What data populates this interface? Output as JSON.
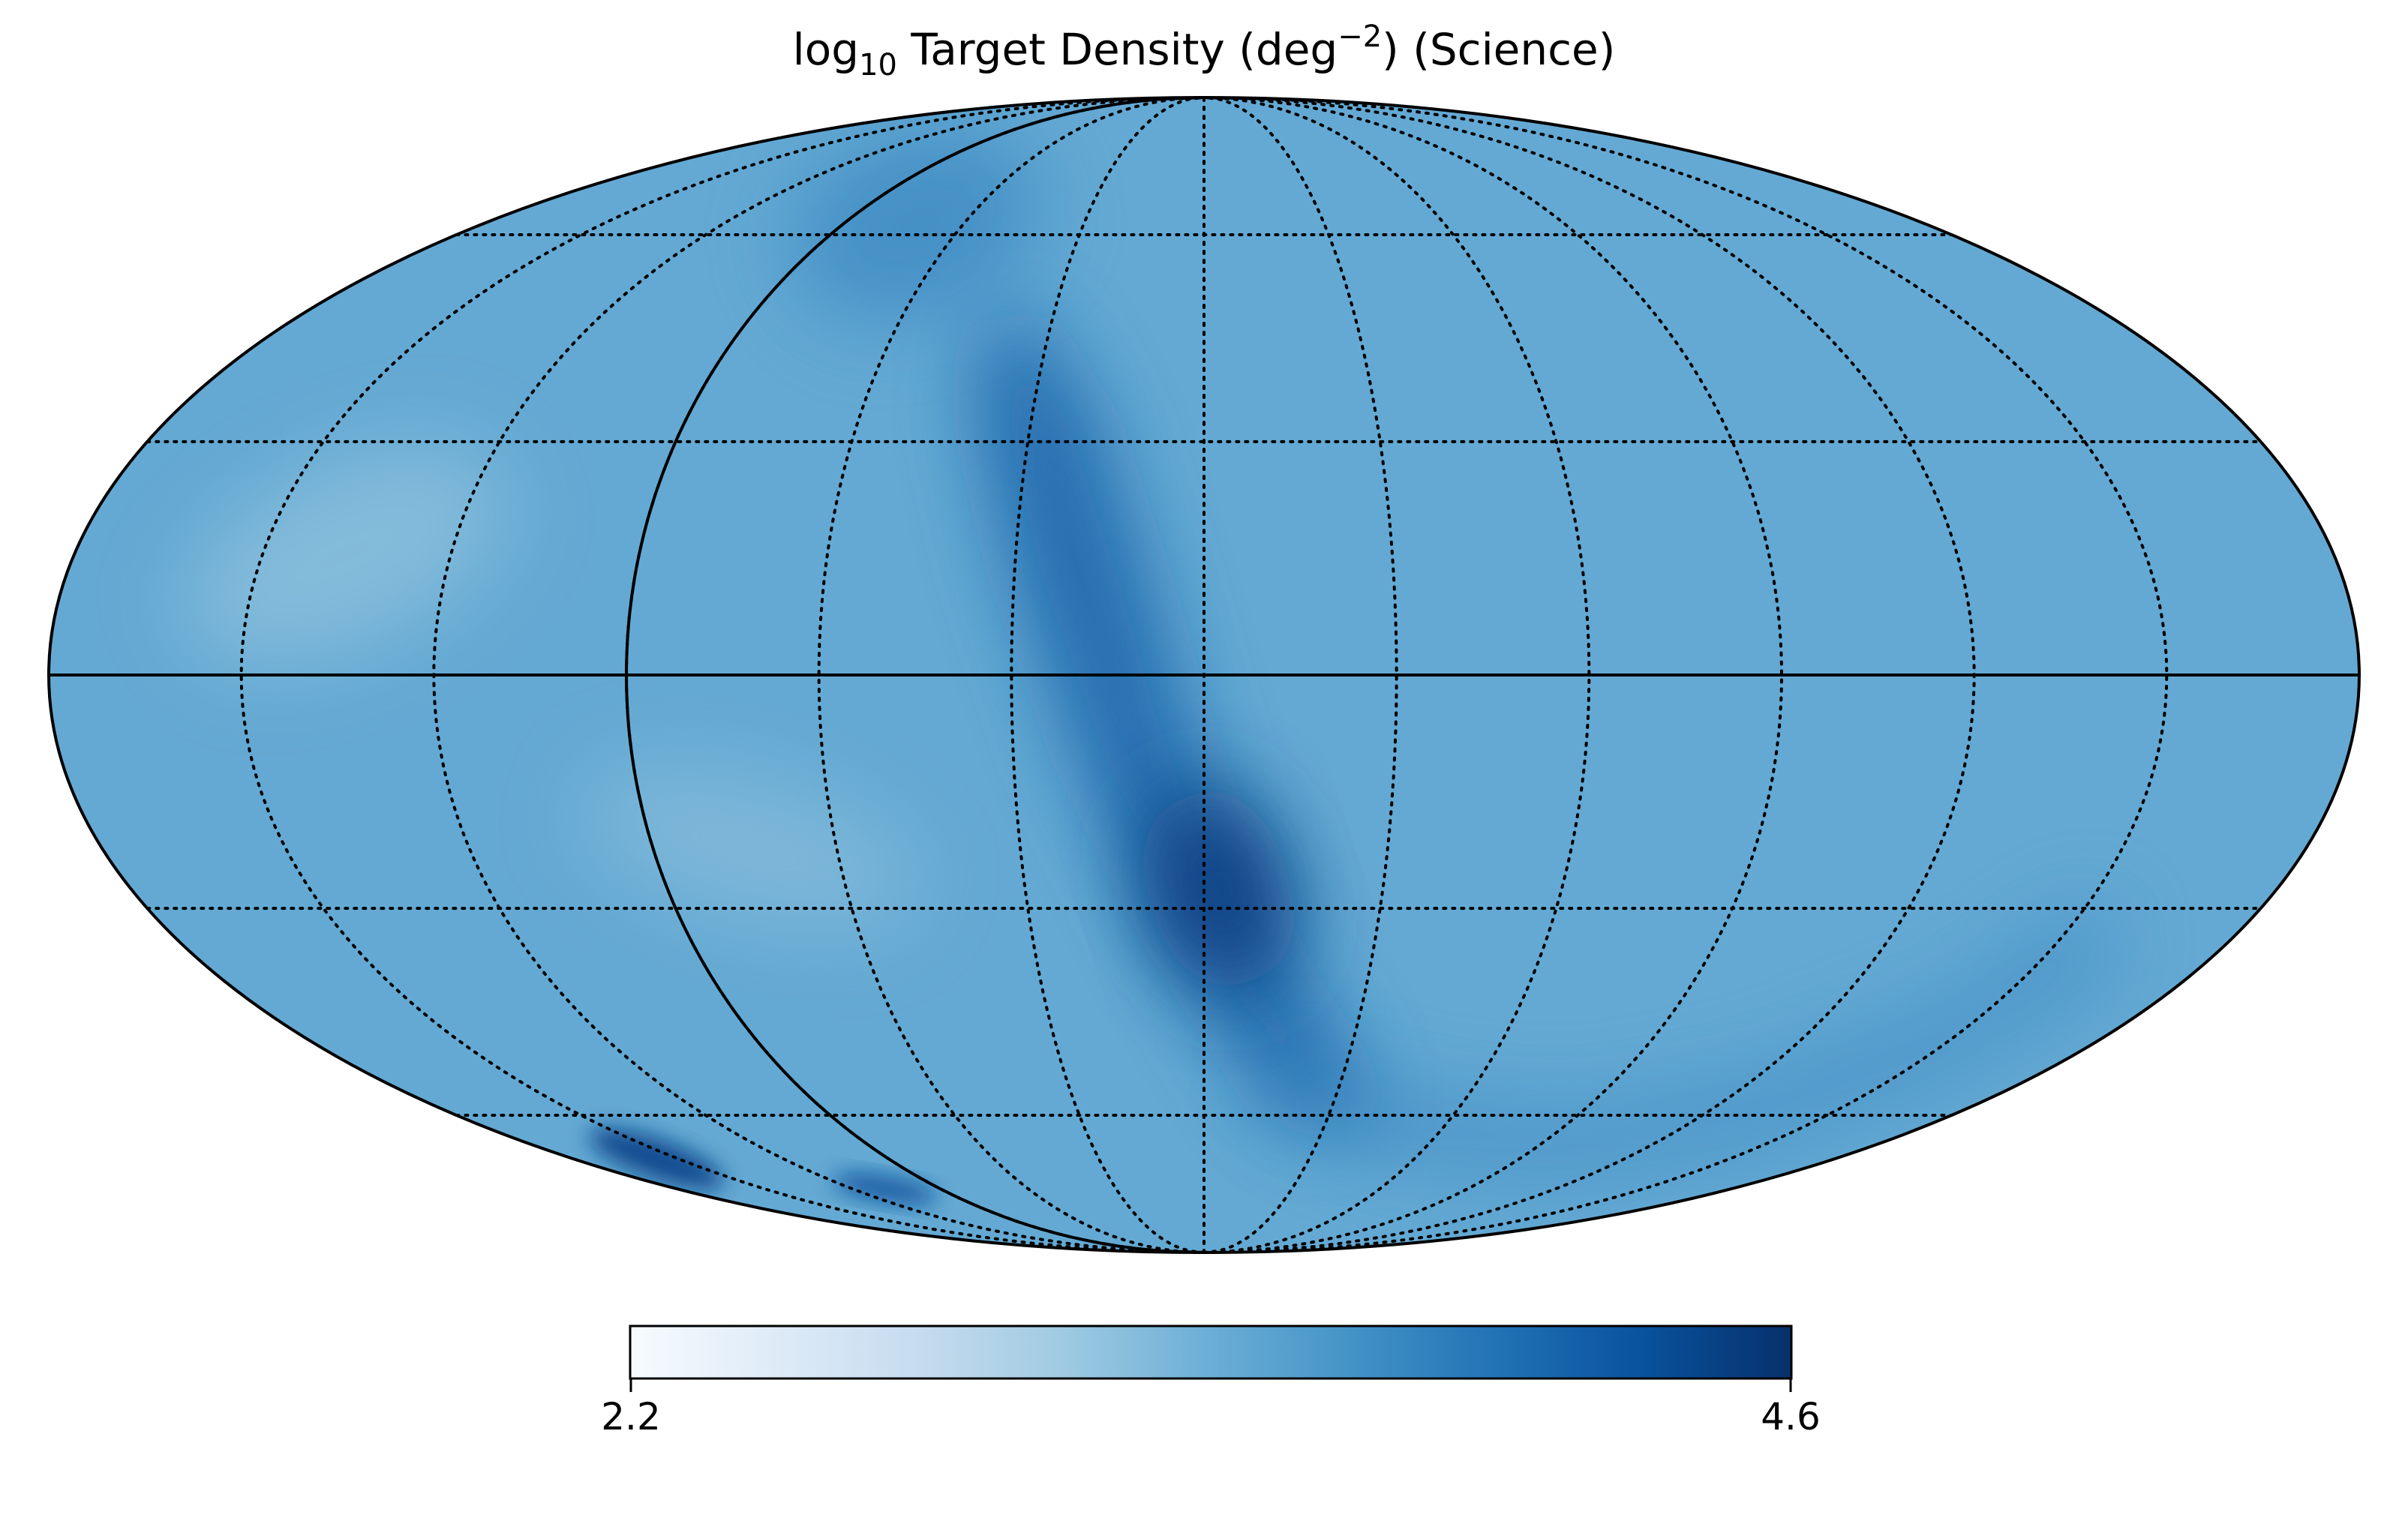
{
  "title": {
    "prefix": "log",
    "subscript": "10",
    "middle": " Target Density (deg",
    "superscript": "−2",
    "suffix": ") (Science)"
  },
  "colorbar": {
    "min_label": "2.2",
    "max_label": "4.6",
    "min": 2.2,
    "max": 4.6,
    "colormap": "Blues",
    "stops": [
      "#f7fbff",
      "#deebf7",
      "#c6dbef",
      "#9ecae1",
      "#6baed6",
      "#4292c6",
      "#2171b5",
      "#08519c",
      "#08306b"
    ]
  },
  "map": {
    "projection": "mollweide",
    "base_level": 3.45,
    "graticule": {
      "meridian_step_deg": 30,
      "parallel_step_deg": 30,
      "style": "dotted"
    },
    "solid_lines": [
      "equator",
      "meridian at -90 deg"
    ],
    "features": [
      {
        "name": "galactic-plane-band",
        "level": 4.15
      },
      {
        "name": "bulge-core",
        "level": 4.45
      },
      {
        "name": "southern-arc",
        "level": 3.9
      },
      {
        "name": "upper-left-dense-patch",
        "level": 3.9
      },
      {
        "name": "small-magellanic-cloud",
        "level": 4.3
      },
      {
        "name": "large-magellanic-cloud",
        "level": 4.4
      },
      {
        "name": "underdense-north-west",
        "level": 3.1
      },
      {
        "name": "underdense-south-center",
        "level": 3.15
      }
    ]
  }
}
